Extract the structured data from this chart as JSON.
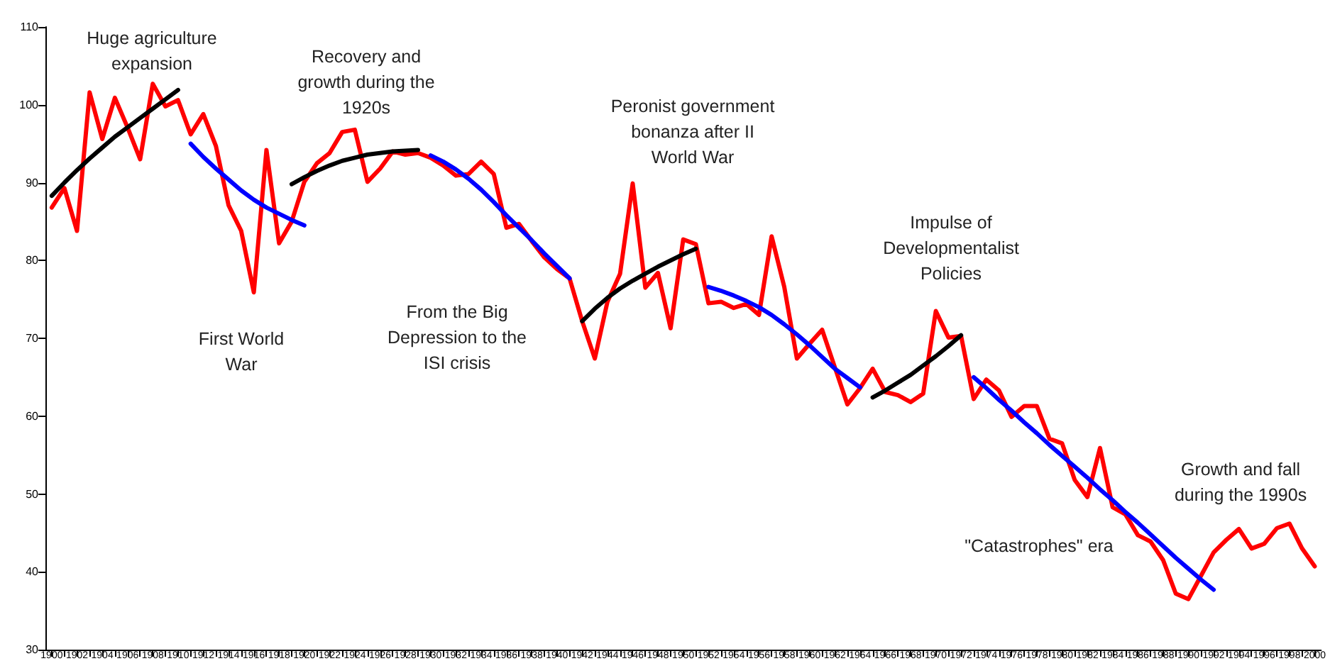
{
  "chart_data": {
    "type": "line",
    "marker": "none",
    "line_style": "solid",
    "grid": false,
    "categories": [
      "1900",
      null,
      "1902",
      null,
      "1904",
      null,
      "1906",
      null,
      "1908",
      null,
      "1910",
      null,
      "1912",
      null,
      "1914",
      null,
      "1916",
      null,
      "1918",
      null,
      "1920",
      null,
      "1922",
      null,
      "1924",
      null,
      "1926",
      null,
      "1928",
      null,
      "1930",
      null,
      "1932",
      null,
      "1934",
      null,
      "1936",
      null,
      "1938",
      null,
      "1940",
      null,
      "1942",
      null,
      "1944",
      null,
      "1946",
      null,
      "1948",
      null,
      "1950",
      null,
      "1952",
      null,
      "1954",
      null,
      "1956",
      null,
      "1958",
      null,
      "1960",
      null,
      "1962",
      null,
      "1964",
      null,
      "1966",
      null,
      "1968",
      null,
      "1970",
      null,
      "1972",
      null,
      "1974",
      null,
      "1976",
      null,
      "1978",
      null,
      "1980",
      null,
      "1982",
      null,
      "1984",
      null,
      "1986",
      null,
      "1988",
      null,
      "1990",
      null,
      "1992",
      null,
      "1994",
      null,
      "1996",
      null,
      "1998",
      null,
      "2000"
    ],
    "ylim": [
      30,
      110
    ],
    "yticks": [
      30,
      40,
      50,
      60,
      70,
      80,
      90,
      100,
      110
    ],
    "series": [
      {
        "color": "#ff0000",
        "values": [
          86.8,
          89.3,
          83.8,
          101.6,
          95.6,
          100.9,
          97.1,
          93.0,
          102.7,
          99.8,
          100.6,
          96.2,
          98.8,
          94.7,
          87.1,
          83.8,
          75.9,
          94.2,
          82.2,
          85.0,
          90.1,
          92.5,
          93.8,
          96.5,
          96.8,
          90.1,
          91.8,
          94.0,
          93.6,
          93.8,
          93.2,
          92.2,
          90.9,
          91.1,
          92.7,
          91.1,
          84.2,
          84.7,
          82.5,
          80.4,
          78.9,
          77.7,
          72.2,
          67.4,
          74.7,
          78.3,
          89.9,
          76.5,
          78.4,
          71.3,
          82.7,
          82.1,
          74.5,
          74.7,
          73.9,
          74.4,
          73.0,
          83.1,
          76.6,
          67.4,
          69.3,
          71.1,
          66.3,
          61.5,
          63.6,
          66.1,
          63.1,
          62.7,
          61.8,
          62.9,
          73.5,
          70.1,
          70.3,
          62.2,
          64.7,
          63.3,
          59.9,
          61.3,
          61.3,
          57.1,
          56.5,
          51.8,
          49.6,
          55.9,
          48.3,
          47.4,
          44.7,
          43.9,
          41.5,
          37.2,
          36.5,
          39.5,
          42.5,
          44.1,
          45.5,
          43.0,
          43.6,
          45.6,
          46.2,
          43.0,
          40.7
        ]
      },
      {
        "color": "#000000",
        "values": [
          88.3,
          90.0,
          91.6,
          93.1,
          94.5,
          95.9,
          97.1,
          98.3,
          99.5,
          100.7,
          101.9,
          null,
          null,
          null,
          null,
          null,
          null,
          null,
          null,
          null,
          null,
          null,
          null,
          null,
          null,
          null,
          null,
          null,
          null,
          null,
          null,
          null,
          null,
          null,
          null,
          null,
          null,
          null,
          null,
          null,
          null,
          null,
          null,
          null,
          null,
          null,
          null,
          null,
          null,
          null,
          null,
          null,
          null,
          null,
          null,
          null,
          null,
          null,
          null,
          null,
          null,
          null,
          null,
          null,
          null,
          null,
          null,
          null,
          null,
          null,
          null,
          null,
          null,
          null,
          null,
          null,
          null,
          null,
          null,
          null,
          null,
          null,
          null,
          null,
          null,
          null,
          null,
          null,
          null,
          null,
          null,
          null,
          null,
          null,
          null,
          null,
          null,
          null,
          null,
          null,
          null
        ]
      },
      {
        "color": "#0000ff",
        "values": [
          null,
          null,
          null,
          null,
          null,
          null,
          null,
          null,
          null,
          null,
          null,
          95.0,
          93.3,
          91.8,
          90.4,
          89.0,
          87.8,
          86.8,
          86.0,
          85.2,
          84.5,
          null,
          null,
          null,
          null,
          null,
          null,
          null,
          null,
          null,
          null,
          null,
          null,
          null,
          null,
          null,
          null,
          null,
          null,
          null,
          null,
          null,
          null,
          null,
          null,
          null,
          null,
          null,
          null,
          null,
          null,
          null,
          null,
          null,
          null,
          null,
          null,
          null,
          null,
          null,
          null,
          null,
          null,
          null,
          null,
          null,
          null,
          null,
          null,
          null,
          null,
          null,
          null,
          null,
          null,
          null,
          null,
          null,
          null,
          null,
          null,
          null,
          null,
          null,
          null,
          null,
          null,
          null,
          null,
          null,
          null,
          null,
          null,
          null,
          null,
          null,
          null,
          null,
          null,
          null,
          null
        ]
      },
      {
        "color": "#000000",
        "values": [
          null,
          null,
          null,
          null,
          null,
          null,
          null,
          null,
          null,
          null,
          null,
          null,
          null,
          null,
          null,
          null,
          null,
          null,
          null,
          89.8,
          90.7,
          91.5,
          92.2,
          92.8,
          93.2,
          93.6,
          93.8,
          94.0,
          94.1,
          94.2,
          null,
          null,
          null,
          null,
          null,
          null,
          null,
          null,
          null,
          null,
          null,
          null,
          null,
          null,
          null,
          null,
          null,
          null,
          null,
          null,
          null,
          null,
          null,
          null,
          null,
          null,
          null,
          null,
          null,
          null,
          null,
          null,
          null,
          null,
          null,
          null,
          null,
          null,
          null,
          null,
          null,
          null,
          null,
          null,
          null,
          null,
          null,
          null,
          null,
          null,
          null,
          null,
          null,
          null,
          null,
          null,
          null,
          null,
          null,
          null,
          null,
          null,
          null,
          null,
          null,
          null,
          null,
          null,
          null,
          null,
          null
        ]
      },
      {
        "color": "#0000ff",
        "values": [
          null,
          null,
          null,
          null,
          null,
          null,
          null,
          null,
          null,
          null,
          null,
          null,
          null,
          null,
          null,
          null,
          null,
          null,
          null,
          null,
          null,
          null,
          null,
          null,
          null,
          null,
          null,
          null,
          null,
          null,
          93.5,
          92.7,
          91.7,
          90.5,
          89.1,
          87.5,
          85.8,
          84.2,
          82.6,
          80.9,
          79.3,
          77.7,
          null,
          null,
          null,
          null,
          null,
          null,
          null,
          null,
          null,
          null,
          null,
          null,
          null,
          null,
          null,
          null,
          null,
          null,
          null,
          null,
          null,
          null,
          null,
          null,
          null,
          null,
          null,
          null,
          null,
          null,
          null,
          null,
          null,
          null,
          null,
          null,
          null,
          null,
          null,
          null,
          null,
          null,
          null,
          null,
          null,
          null,
          null,
          null,
          null,
          null,
          null,
          null,
          null,
          null,
          null,
          null,
          null,
          null,
          null
        ]
      },
      {
        "color": "#000000",
        "values": [
          null,
          null,
          null,
          null,
          null,
          null,
          null,
          null,
          null,
          null,
          null,
          null,
          null,
          null,
          null,
          null,
          null,
          null,
          null,
          null,
          null,
          null,
          null,
          null,
          null,
          null,
          null,
          null,
          null,
          null,
          null,
          null,
          null,
          null,
          null,
          null,
          null,
          null,
          null,
          null,
          null,
          null,
          72.2,
          73.8,
          75.2,
          76.4,
          77.4,
          78.3,
          79.2,
          80.0,
          80.8,
          81.5,
          null,
          null,
          null,
          null,
          null,
          null,
          null,
          null,
          null,
          null,
          null,
          null,
          null,
          null,
          null,
          null,
          null,
          null,
          null,
          null,
          null,
          null,
          null,
          null,
          null,
          null,
          null,
          null,
          null,
          null,
          null,
          null,
          null,
          null,
          null,
          null,
          null,
          null,
          null,
          null,
          null,
          null,
          null,
          null,
          null,
          null,
          null,
          null,
          null
        ]
      },
      {
        "color": "#0000ff",
        "values": [
          null,
          null,
          null,
          null,
          null,
          null,
          null,
          null,
          null,
          null,
          null,
          null,
          null,
          null,
          null,
          null,
          null,
          null,
          null,
          null,
          null,
          null,
          null,
          null,
          null,
          null,
          null,
          null,
          null,
          null,
          null,
          null,
          null,
          null,
          null,
          null,
          null,
          null,
          null,
          null,
          null,
          null,
          null,
          null,
          null,
          null,
          null,
          null,
          null,
          null,
          null,
          null,
          76.6,
          76.1,
          75.5,
          74.8,
          74.0,
          73.0,
          71.8,
          70.5,
          69.1,
          67.6,
          66.1,
          64.9,
          63.7,
          null,
          null,
          null,
          null,
          null,
          null,
          null,
          null,
          null,
          null,
          null,
          null,
          null,
          null,
          null,
          null,
          null,
          null,
          null,
          null,
          null,
          null,
          null,
          null,
          null,
          null,
          null,
          null,
          null,
          null,
          null,
          null,
          null,
          null,
          null,
          null
        ]
      },
      {
        "color": "#000000",
        "values": [
          null,
          null,
          null,
          null,
          null,
          null,
          null,
          null,
          null,
          null,
          null,
          null,
          null,
          null,
          null,
          null,
          null,
          null,
          null,
          null,
          null,
          null,
          null,
          null,
          null,
          null,
          null,
          null,
          null,
          null,
          null,
          null,
          null,
          null,
          null,
          null,
          null,
          null,
          null,
          null,
          null,
          null,
          null,
          null,
          null,
          null,
          null,
          null,
          null,
          null,
          null,
          null,
          null,
          null,
          null,
          null,
          null,
          null,
          null,
          null,
          null,
          null,
          null,
          null,
          null,
          62.4,
          63.3,
          64.3,
          65.3,
          66.5,
          67.7,
          69.0,
          70.4,
          null,
          null,
          null,
          null,
          null,
          null,
          null,
          null,
          null,
          null,
          null,
          null,
          null,
          null,
          null,
          null,
          null,
          null,
          null,
          null,
          null,
          null,
          null,
          null,
          null,
          null,
          null,
          null
        ]
      },
      {
        "color": "#0000ff",
        "values": [
          null,
          null,
          null,
          null,
          null,
          null,
          null,
          null,
          null,
          null,
          null,
          null,
          null,
          null,
          null,
          null,
          null,
          null,
          null,
          null,
          null,
          null,
          null,
          null,
          null,
          null,
          null,
          null,
          null,
          null,
          null,
          null,
          null,
          null,
          null,
          null,
          null,
          null,
          null,
          null,
          null,
          null,
          null,
          null,
          null,
          null,
          null,
          null,
          null,
          null,
          null,
          null,
          null,
          null,
          null,
          null,
          null,
          null,
          null,
          null,
          null,
          null,
          null,
          null,
          null,
          null,
          null,
          null,
          null,
          null,
          null,
          null,
          null,
          65.0,
          63.6,
          62.1,
          60.7,
          59.2,
          57.8,
          56.3,
          54.9,
          53.5,
          52.1,
          50.6,
          49.2,
          47.7,
          46.3,
          44.8,
          43.3,
          41.8,
          40.4,
          39.0,
          37.7,
          null,
          null,
          null,
          null,
          null,
          null,
          null,
          null
        ]
      }
    ],
    "annotations": [
      "Huge agriculture\nexpansion",
      "Recovery and\ngrowth during the\n1920s",
      "First World\nWar",
      "From the Big\nDepression to the\nISI crisis",
      "Peronist government\nbonanza after II\nWorld War",
      "Impulse of\nDevelopmentalist\nPolicies",
      "\"Catastrophes\" era",
      "Growth and fall\nduring the 1990s"
    ]
  }
}
